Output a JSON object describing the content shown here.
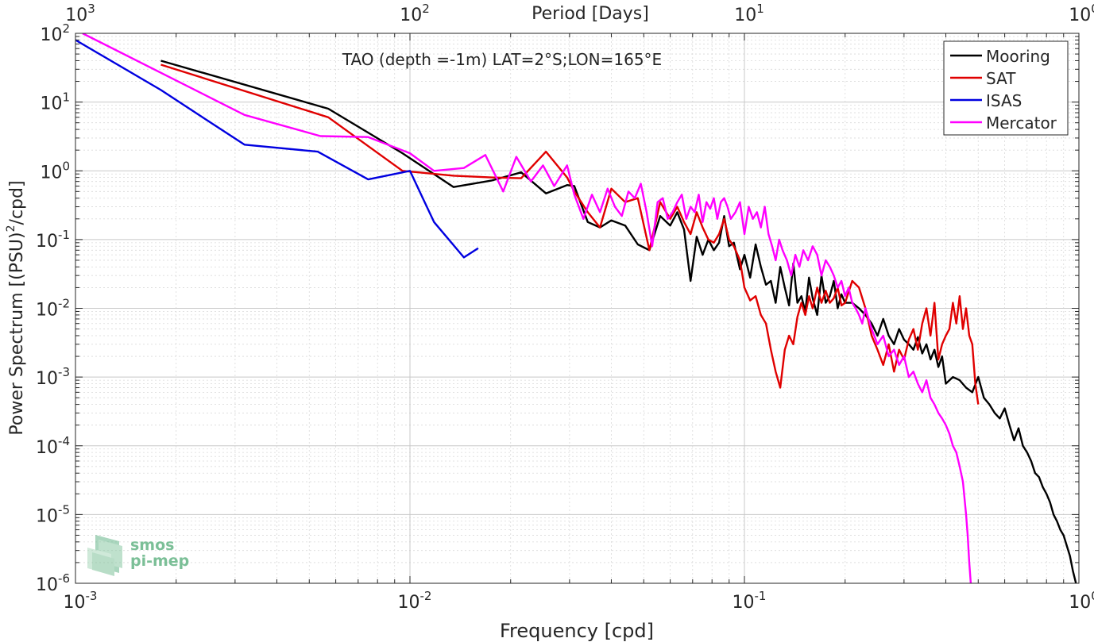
{
  "chart_data": {
    "type": "line",
    "title": "TAO (depth =-1m) LAT=2°S;LON=165°E",
    "xlabel": "Frequency [cpd]",
    "ylabel": "Power Spectrum [(PSU)",
    "ylabel_sup": "2",
    "ylabel_tail": "/cpd]",
    "top_xlabel": "Period [Days]",
    "xscale": "log",
    "yscale": "log",
    "xlim": [
      0.001,
      1
    ],
    "ylim": [
      1e-06,
      100
    ],
    "grid": true,
    "legend_position": "top-right",
    "x_ticks": [
      {
        "value": 0.001,
        "base": "10",
        "exp": "-3"
      },
      {
        "value": 0.01,
        "base": "10",
        "exp": "-2"
      },
      {
        "value": 0.1,
        "base": "10",
        "exp": "-1"
      },
      {
        "value": 1,
        "base": "10",
        "exp": "0"
      }
    ],
    "top_ticks": [
      {
        "freq": 0.001,
        "base": "10",
        "exp": "3"
      },
      {
        "freq": 0.01,
        "base": "10",
        "exp": "2"
      },
      {
        "freq": 0.1,
        "base": "10",
        "exp": "1"
      },
      {
        "freq": 1,
        "base": "10",
        "exp": "0"
      }
    ],
    "y_ticks": [
      {
        "value": 100,
        "base": "10",
        "exp": "2"
      },
      {
        "value": 10,
        "base": "10",
        "exp": "1"
      },
      {
        "value": 1,
        "base": "10",
        "exp": "0"
      },
      {
        "value": 0.1,
        "base": "10",
        "exp": "-1"
      },
      {
        "value": 0.01,
        "base": "10",
        "exp": "-2"
      },
      {
        "value": 0.001,
        "base": "10",
        "exp": "-3"
      },
      {
        "value": 0.0001,
        "base": "10",
        "exp": "-4"
      },
      {
        "value": 1e-05,
        "base": "10",
        "exp": "-5"
      },
      {
        "value": 1e-06,
        "base": "10",
        "exp": "-6"
      }
    ],
    "series": [
      {
        "name": "Mooring",
        "color": "#000000",
        "x": [
          0.0018,
          0.0057,
          0.0095,
          0.0135,
          0.0175,
          0.0215,
          0.0255,
          0.0295,
          0.031,
          0.034,
          0.037,
          0.04,
          0.044,
          0.048,
          0.052,
          0.056,
          0.06,
          0.063,
          0.066,
          0.069,
          0.072,
          0.075,
          0.078,
          0.081,
          0.084,
          0.087,
          0.09,
          0.093,
          0.097,
          0.1,
          0.104,
          0.108,
          0.112,
          0.116,
          0.12,
          0.124,
          0.128,
          0.132,
          0.136,
          0.14,
          0.144,
          0.148,
          0.152,
          0.156,
          0.16,
          0.165,
          0.17,
          0.175,
          0.18,
          0.185,
          0.19,
          0.195,
          0.2,
          0.21,
          0.22,
          0.23,
          0.24,
          0.25,
          0.26,
          0.27,
          0.28,
          0.29,
          0.3,
          0.31,
          0.32,
          0.33,
          0.34,
          0.35,
          0.36,
          0.37,
          0.38,
          0.39,
          0.4,
          0.42,
          0.44,
          0.46,
          0.48,
          0.5,
          0.52,
          0.54,
          0.56,
          0.58,
          0.6,
          0.62,
          0.64,
          0.66,
          0.68,
          0.7,
          0.72,
          0.74,
          0.76,
          0.78,
          0.8,
          0.82,
          0.84,
          0.86,
          0.88,
          0.9,
          0.92,
          0.94,
          0.96,
          0.98
        ],
        "y": [
          40,
          8,
          1.8,
          0.58,
          0.72,
          0.95,
          0.47,
          0.62,
          0.6,
          0.18,
          0.15,
          0.19,
          0.16,
          0.085,
          0.07,
          0.22,
          0.16,
          0.25,
          0.14,
          0.025,
          0.11,
          0.06,
          0.1,
          0.07,
          0.09,
          0.22,
          0.08,
          0.09,
          0.037,
          0.06,
          0.028,
          0.085,
          0.04,
          0.022,
          0.025,
          0.012,
          0.04,
          0.02,
          0.011,
          0.045,
          0.012,
          0.015,
          0.009,
          0.028,
          0.014,
          0.008,
          0.03,
          0.012,
          0.015,
          0.025,
          0.01,
          0.016,
          0.012,
          0.012,
          0.01,
          0.008,
          0.006,
          0.004,
          0.007,
          0.004,
          0.003,
          0.005,
          0.0035,
          0.003,
          0.0025,
          0.0038,
          0.0022,
          0.003,
          0.0018,
          0.0025,
          0.0014,
          0.002,
          0.0008,
          0.001,
          0.0009,
          0.0007,
          0.0006,
          0.001,
          0.0005,
          0.0004,
          0.0003,
          0.00025,
          0.00035,
          0.0002,
          0.00012,
          0.00018,
          0.0001,
          8e-05,
          6e-05,
          4e-05,
          3.5e-05,
          2.5e-05,
          2e-05,
          1.5e-05,
          1e-05,
          8e-06,
          6e-06,
          5e-06,
          3.5e-06,
          2.5e-06,
          1.5e-06,
          1e-06
        ]
      },
      {
        "name": "SAT",
        "color": "#e00000",
        "x": [
          0.0018,
          0.0057,
          0.0095,
          0.0135,
          0.0175,
          0.0215,
          0.0255,
          0.0295,
          0.031,
          0.034,
          0.037,
          0.04,
          0.044,
          0.048,
          0.052,
          0.056,
          0.06,
          0.063,
          0.066,
          0.069,
          0.072,
          0.075,
          0.078,
          0.081,
          0.084,
          0.087,
          0.09,
          0.093,
          0.097,
          0.1,
          0.104,
          0.108,
          0.112,
          0.116,
          0.12,
          0.124,
          0.128,
          0.132,
          0.136,
          0.14,
          0.144,
          0.148,
          0.152,
          0.156,
          0.16,
          0.165,
          0.17,
          0.175,
          0.18,
          0.185,
          0.19,
          0.195,
          0.2,
          0.21,
          0.22,
          0.23,
          0.24,
          0.25,
          0.26,
          0.27,
          0.28,
          0.29,
          0.3,
          0.31,
          0.32,
          0.33,
          0.34,
          0.35,
          0.36,
          0.37,
          0.38,
          0.39,
          0.4,
          0.41,
          0.42,
          0.43,
          0.44,
          0.45,
          0.46,
          0.47,
          0.48,
          0.49,
          0.5
        ],
        "y": [
          35,
          6,
          1.0,
          0.85,
          0.8,
          0.78,
          1.9,
          0.8,
          0.5,
          0.25,
          0.15,
          0.55,
          0.35,
          0.4,
          0.07,
          0.35,
          0.2,
          0.3,
          0.18,
          0.12,
          0.25,
          0.15,
          0.1,
          0.09,
          0.12,
          0.2,
          0.1,
          0.08,
          0.05,
          0.02,
          0.013,
          0.015,
          0.008,
          0.006,
          0.0025,
          0.0012,
          0.0007,
          0.0025,
          0.004,
          0.003,
          0.0075,
          0.012,
          0.008,
          0.015,
          0.01,
          0.02,
          0.012,
          0.018,
          0.012,
          0.014,
          0.02,
          0.011,
          0.012,
          0.025,
          0.02,
          0.01,
          0.004,
          0.0025,
          0.0015,
          0.003,
          0.0012,
          0.0025,
          0.0018,
          0.0035,
          0.005,
          0.0025,
          0.006,
          0.01,
          0.004,
          0.012,
          0.0018,
          0.003,
          0.004,
          0.005,
          0.012,
          0.006,
          0.015,
          0.005,
          0.01,
          0.004,
          0.003,
          0.0008,
          0.0004
        ]
      },
      {
        "name": "ISAS",
        "color": "#0000e0",
        "x": [
          0.001,
          0.0018,
          0.0032,
          0.0053,
          0.0075,
          0.01,
          0.0118,
          0.0145,
          0.016
        ],
        "y": [
          80,
          15,
          2.4,
          1.9,
          0.75,
          1.0,
          0.18,
          0.055,
          0.075
        ]
      },
      {
        "name": "Mercator",
        "color": "#ff00ff",
        "x": [
          0.00105,
          0.0032,
          0.0054,
          0.0075,
          0.01,
          0.0118,
          0.0145,
          0.0168,
          0.019,
          0.0208,
          0.023,
          0.025,
          0.027,
          0.0295,
          0.031,
          0.033,
          0.035,
          0.037,
          0.039,
          0.041,
          0.043,
          0.045,
          0.047,
          0.049,
          0.051,
          0.053,
          0.055,
          0.057,
          0.059,
          0.061,
          0.063,
          0.065,
          0.067,
          0.069,
          0.071,
          0.073,
          0.075,
          0.077,
          0.079,
          0.081,
          0.083,
          0.085,
          0.087,
          0.089,
          0.091,
          0.094,
          0.097,
          0.1,
          0.103,
          0.106,
          0.109,
          0.112,
          0.115,
          0.118,
          0.121,
          0.124,
          0.127,
          0.13,
          0.134,
          0.138,
          0.142,
          0.146,
          0.15,
          0.155,
          0.16,
          0.165,
          0.17,
          0.175,
          0.18,
          0.185,
          0.19,
          0.195,
          0.2,
          0.205,
          0.21,
          0.215,
          0.22,
          0.225,
          0.23,
          0.24,
          0.25,
          0.26,
          0.27,
          0.28,
          0.29,
          0.3,
          0.31,
          0.32,
          0.33,
          0.34,
          0.35,
          0.36,
          0.37,
          0.38,
          0.39,
          0.4,
          0.41,
          0.42,
          0.43,
          0.44,
          0.45,
          0.46,
          0.465,
          0.47,
          0.475
        ],
        "y": [
          100,
          6.5,
          3.2,
          3.1,
          1.8,
          1.0,
          1.1,
          1.7,
          0.5,
          1.6,
          0.7,
          1.2,
          0.6,
          1.2,
          0.45,
          0.2,
          0.45,
          0.25,
          0.55,
          0.3,
          0.22,
          0.5,
          0.4,
          0.65,
          0.25,
          0.08,
          0.35,
          0.4,
          0.2,
          0.25,
          0.35,
          0.45,
          0.2,
          0.3,
          0.25,
          0.45,
          0.18,
          0.35,
          0.28,
          0.4,
          0.2,
          0.35,
          0.4,
          0.3,
          0.2,
          0.25,
          0.35,
          0.12,
          0.3,
          0.2,
          0.25,
          0.15,
          0.3,
          0.12,
          0.08,
          0.05,
          0.1,
          0.07,
          0.05,
          0.03,
          0.06,
          0.04,
          0.07,
          0.05,
          0.08,
          0.06,
          0.03,
          0.05,
          0.04,
          0.03,
          0.02,
          0.025,
          0.015,
          0.02,
          0.012,
          0.01,
          0.008,
          0.006,
          0.01,
          0.005,
          0.003,
          0.004,
          0.002,
          0.0025,
          0.0015,
          0.002,
          0.001,
          0.0012,
          0.0008,
          0.0006,
          0.0009,
          0.0005,
          0.0004,
          0.0003,
          0.00025,
          0.0002,
          0.00015,
          0.0001,
          8e-05,
          5e-05,
          3e-05,
          1e-05,
          5e-06,
          2e-06,
          1e-06
        ]
      }
    ]
  },
  "logo": {
    "line1": "smos",
    "line2": "pi-mep",
    "color": "#66b58a"
  }
}
